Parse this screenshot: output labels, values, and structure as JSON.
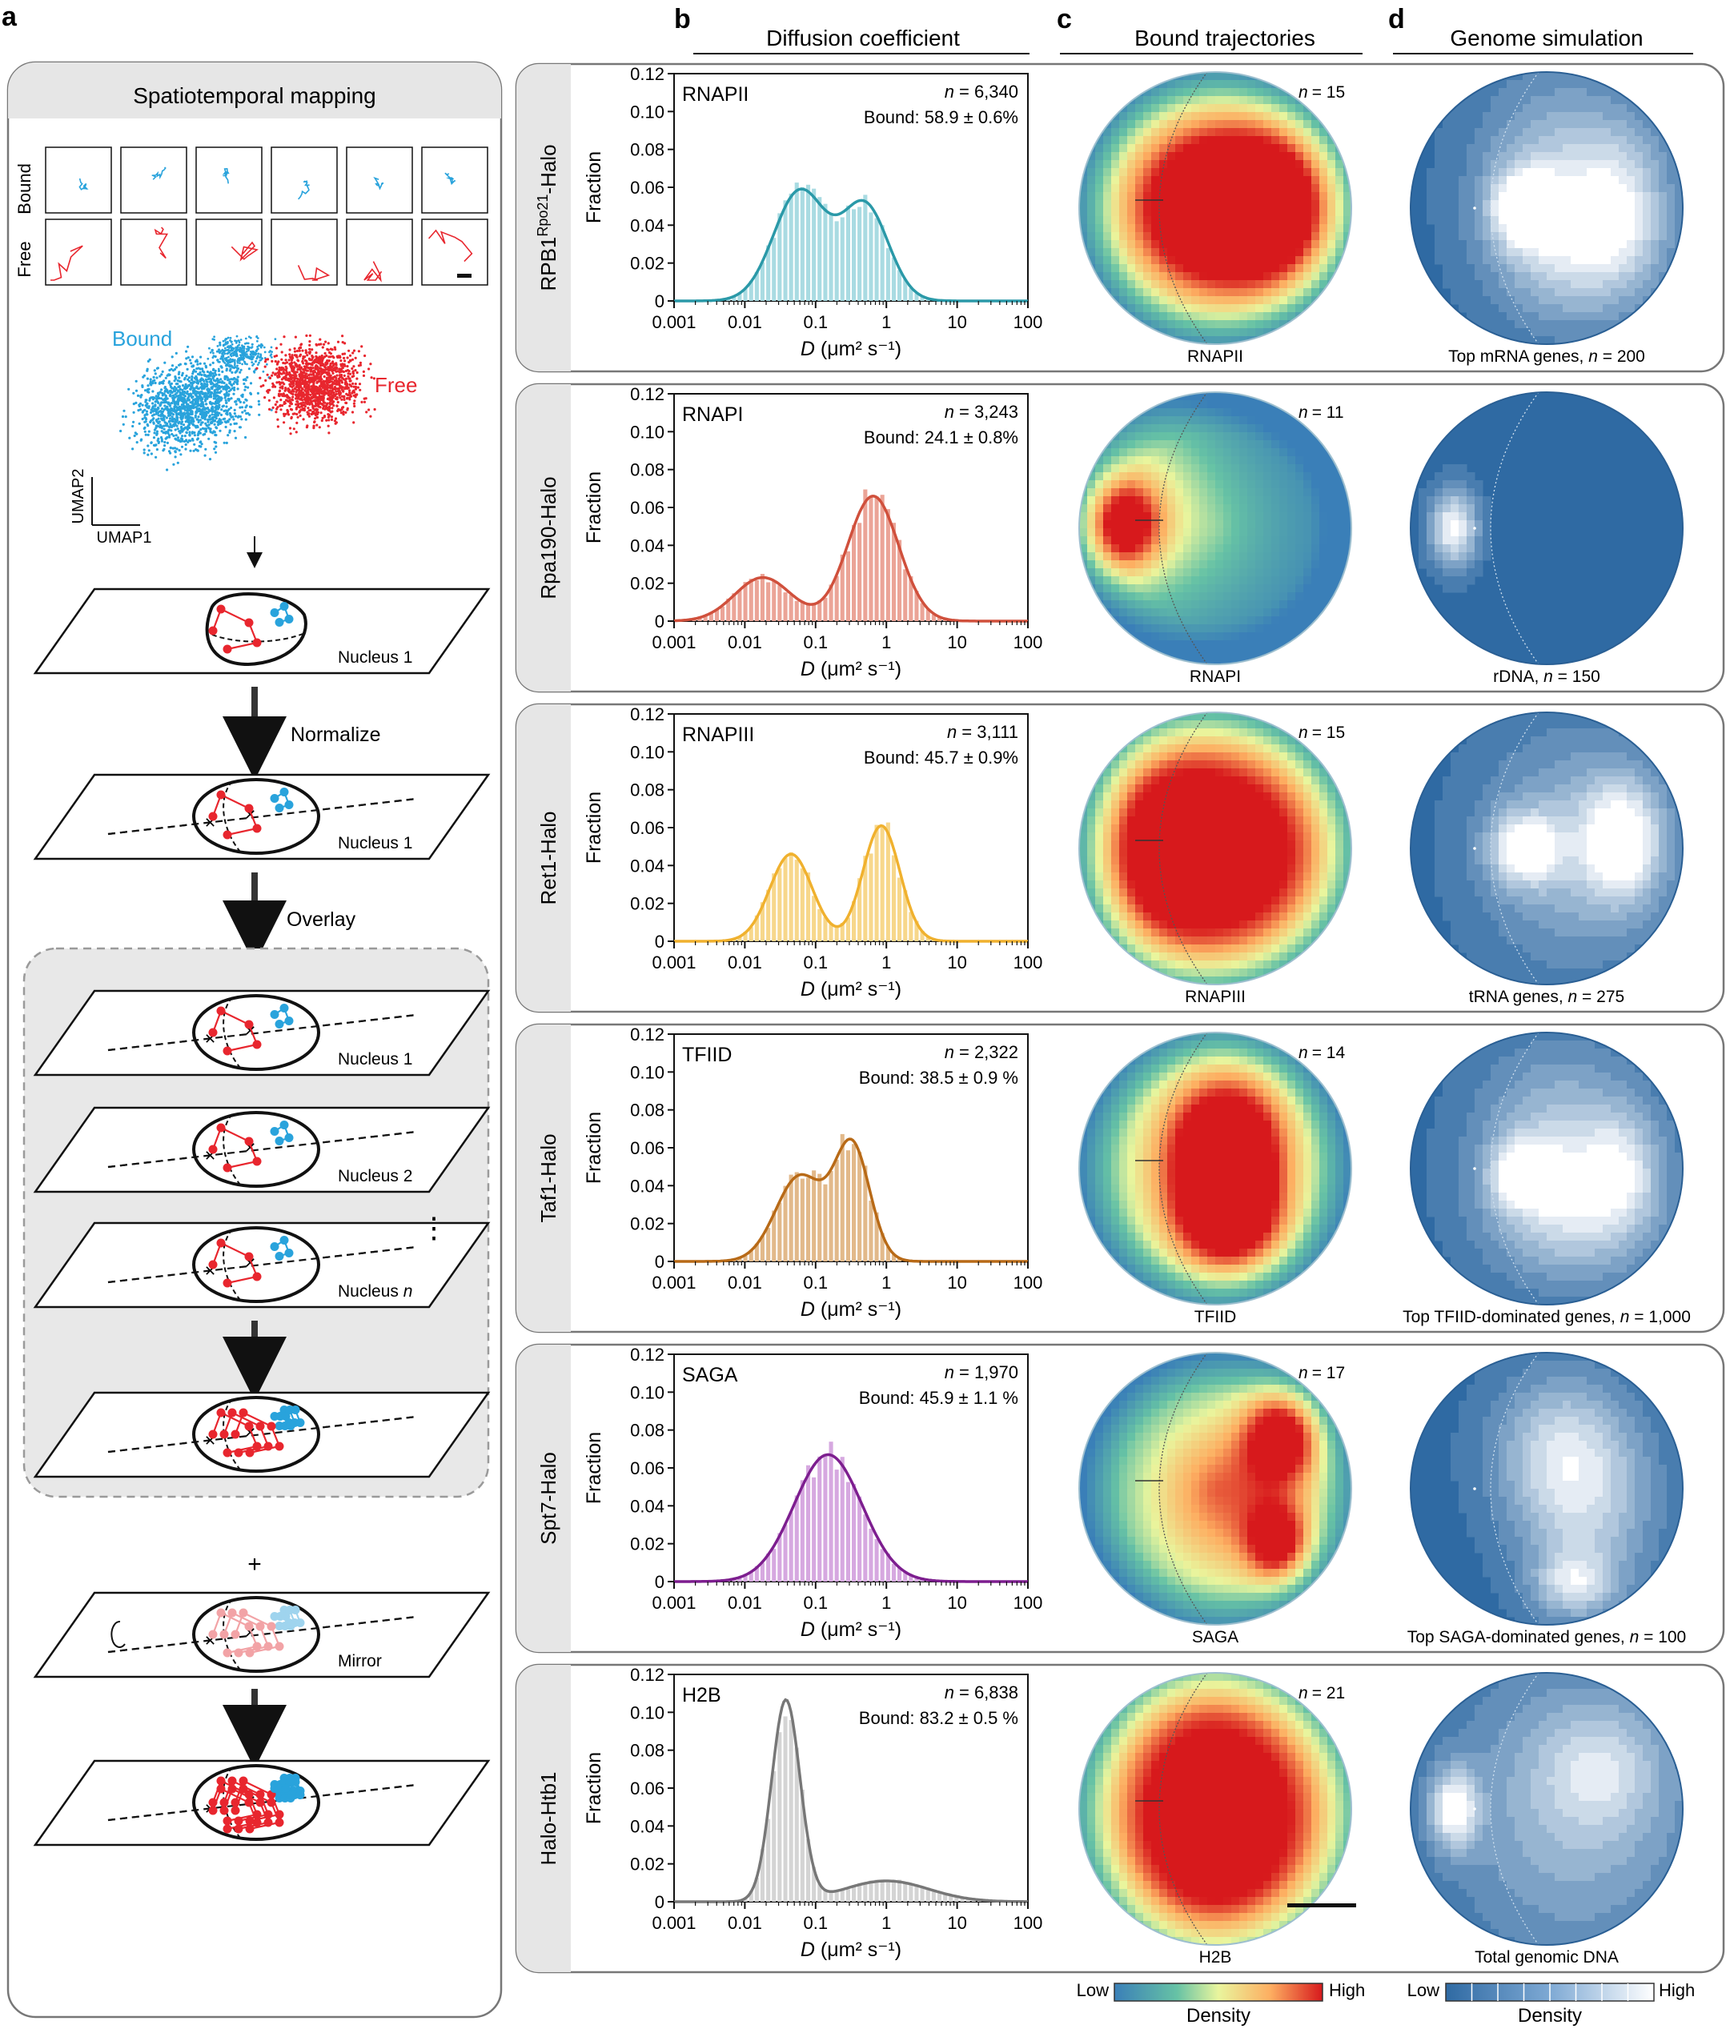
{
  "panel_letters": {
    "a": "a",
    "b": "b",
    "c": "c",
    "d": "d"
  },
  "column_titles": {
    "b": "Diffusion coefficient",
    "c": "Bound trajectories",
    "d": "Genome simulation"
  },
  "panel_a": {
    "title": "Spatiotemporal mapping",
    "bound_label": "Bound",
    "free_label": "Free",
    "umap_bound": "Bound",
    "umap_free": "Free",
    "umap_x": "UMAP1",
    "umap_y": "UMAP2",
    "normalize": "Normalize",
    "overlay": "Overlay",
    "plus": "+",
    "dots": "⋮",
    "nucleus1_a": "Nucleus 1",
    "nucleus1_b": "Nucleus 1",
    "stack1": "Nucleus 1",
    "stack2": "Nucleus 2",
    "stackn_prefix": "Nucleus ",
    "stackn_italic": "n",
    "mirror": "Mirror"
  },
  "density_legend_c": {
    "low": "Low",
    "high": "High",
    "label": "Density"
  },
  "density_legend_d": {
    "low": "Low",
    "high": "High",
    "label": "Density"
  },
  "rows": [
    {
      "strain_main": "RPB1",
      "strain_sup": "Rpo21",
      "strain_tail": "-Halo",
      "factor": "RNAPII",
      "n_text": "= 6,340",
      "bound_text": "Bound: 58.9 ± 0.6%",
      "color": "#2a99a8",
      "fill": "#a9dbe2",
      "c_label": "RNAPII",
      "c_n": "= 15",
      "d_label_pre": "Top mRNA genes, ",
      "d_label_n": "n",
      "d_label_post": " = 200"
    },
    {
      "strain_main": "Rpa190-Halo",
      "strain_sup": "",
      "strain_tail": "",
      "factor": "RNAPI",
      "n_text": "= 3,243",
      "bound_text": "Bound: 24.1 ± 0.8%",
      "color": "#d0503c",
      "fill": "#eba497",
      "c_label": "RNAPI",
      "c_n": "= 11",
      "d_label_pre": "rDNA, ",
      "d_label_n": "n",
      "d_label_post": " = 150"
    },
    {
      "strain_main": "Ret1-Halo",
      "strain_sup": "",
      "strain_tail": "",
      "factor": "RNAPIII",
      "n_text": "= 3,111",
      "bound_text": "Bound: 45.7 ± 0.9%",
      "color": "#f0b12e",
      "fill": "#f7d78b",
      "c_label": "RNAPIII",
      "c_n": "= 15",
      "d_label_pre": "tRNA genes, ",
      "d_label_n": "n",
      "d_label_post": " = 275"
    },
    {
      "strain_main": "Taf1-Halo",
      "strain_sup": "",
      "strain_tail": "",
      "factor": "TFIID",
      "n_text": "= 2,322",
      "bound_text": "Bound: 38.5 ± 0.9 %",
      "color": "#b86a17",
      "fill": "#e2b98a",
      "c_label": "TFIID",
      "c_n": "= 14",
      "d_label_pre": "Top TFIID-dominated genes, ",
      "d_label_n": "n",
      "d_label_post": " = 1,000"
    },
    {
      "strain_main": "Spt7-Halo",
      "strain_sup": "",
      "strain_tail": "",
      "factor": "SAGA",
      "n_text": "= 1,970",
      "bound_text": "Bound: 45.9 ± 1.1 %",
      "color": "#7d1e8f",
      "fill": "#d6a8e0",
      "c_label": "SAGA",
      "c_n": "= 17",
      "d_label_pre": "Top SAGA-dominated genes, ",
      "d_label_n": "n",
      "d_label_post": " = 100"
    },
    {
      "strain_main": "Halo-Htb1",
      "strain_sup": "",
      "strain_tail": "",
      "factor": "H2B",
      "n_text": "= 6,838",
      "bound_text": "Bound: 83.2 ± 0.5 %",
      "color": "#777777",
      "fill": "#d4d4d4",
      "c_label": "H2B",
      "c_n": "= 21",
      "d_label_pre": "Total genomic DNA",
      "d_label_n": "",
      "d_label_post": ""
    }
  ],
  "chart_data": [
    {
      "type": "bar",
      "series_name": "RNAPII",
      "ylabel": "Fraction",
      "xlabel_italic": "D",
      "xlabel_rest": " (μm² s⁻¹)",
      "x_scale": "log",
      "xlim": [
        0.001,
        100
      ],
      "ylim": [
        0,
        0.12
      ],
      "x_ticks": [
        "0.001",
        "0.01",
        "0.1",
        "1",
        "10",
        "100"
      ],
      "y_ticks": [
        "0",
        "0.02",
        "0.04",
        "0.06",
        "0.08",
        "0.10",
        "0.12"
      ],
      "curve_peaks": [
        {
          "x": 0.06,
          "y": 0.058,
          "w": 0.37
        },
        {
          "x": 0.5,
          "y": 0.05,
          "w": 0.33
        }
      ],
      "curve_base": 0.0
    },
    {
      "type": "bar",
      "series_name": "RNAPI",
      "ylabel": "Fraction",
      "xlabel_italic": "D",
      "xlabel_rest": " (μm² s⁻¹)",
      "x_scale": "log",
      "xlim": [
        0.001,
        100
      ],
      "ylim": [
        0,
        0.12
      ],
      "x_ticks": [
        "0.001",
        "0.01",
        "0.1",
        "1",
        "10",
        "100"
      ],
      "y_ticks": [
        "0",
        "0.02",
        "0.04",
        "0.06",
        "0.08",
        "0.10",
        "0.12"
      ],
      "curve_peaks": [
        {
          "x": 0.018,
          "y": 0.023,
          "w": 0.4
        },
        {
          "x": 0.65,
          "y": 0.066,
          "w": 0.36
        }
      ],
      "curve_base": 0.0
    },
    {
      "type": "bar",
      "series_name": "RNAPIII",
      "ylabel": "Fraction",
      "xlabel_italic": "D",
      "xlabel_rest": " (μm² s⁻¹)",
      "x_scale": "log",
      "xlim": [
        0.001,
        100
      ],
      "ylim": [
        0,
        0.12
      ],
      "x_ticks": [
        "0.001",
        "0.01",
        "0.1",
        "1",
        "10",
        "100"
      ],
      "y_ticks": [
        "0",
        "0.02",
        "0.04",
        "0.06",
        "0.08",
        "0.10",
        "0.12"
      ],
      "curve_peaks": [
        {
          "x": 0.045,
          "y": 0.046,
          "w": 0.3
        },
        {
          "x": 0.85,
          "y": 0.061,
          "w": 0.26
        }
      ],
      "curve_base": 0.0
    },
    {
      "type": "bar",
      "series_name": "TFIID",
      "ylabel": "Fraction",
      "xlabel_italic": "D",
      "xlabel_rest": " (μm² s⁻¹)",
      "x_scale": "log",
      "xlim": [
        0.001,
        100
      ],
      "ylim": [
        0,
        0.12
      ],
      "x_ticks": [
        "0.001",
        "0.01",
        "0.1",
        "1",
        "10",
        "100"
      ],
      "y_ticks": [
        "0",
        "0.02",
        "0.04",
        "0.06",
        "0.08",
        "0.10",
        "0.12"
      ],
      "curve_peaks": [
        {
          "x": 0.06,
          "y": 0.045,
          "w": 0.34
        },
        {
          "x": 0.33,
          "y": 0.06,
          "w": 0.25
        }
      ],
      "curve_base": 0.0
    },
    {
      "type": "bar",
      "series_name": "SAGA",
      "ylabel": "Fraction",
      "xlabel_italic": "D",
      "xlabel_rest": " (μm² s⁻¹)",
      "x_scale": "log",
      "xlim": [
        0.001,
        100
      ],
      "ylim": [
        0,
        0.12
      ],
      "x_ticks": [
        "0.001",
        "0.01",
        "0.1",
        "1",
        "10",
        "100"
      ],
      "y_ticks": [
        "0",
        "0.02",
        "0.04",
        "0.06",
        "0.08",
        "0.10",
        "0.12"
      ],
      "curve_peaks": [
        {
          "x": 0.15,
          "y": 0.067,
          "w": 0.48
        }
      ],
      "curve_base": 0.0
    },
    {
      "type": "bar",
      "series_name": "H2B",
      "ylabel": "Fraction",
      "xlabel_italic": "D",
      "xlabel_rest": " (μm² s⁻¹)",
      "x_scale": "log",
      "xlim": [
        0.001,
        100
      ],
      "ylim": [
        0,
        0.12
      ],
      "x_ticks": [
        "0.001",
        "0.01",
        "0.1",
        "1",
        "10",
        "100"
      ],
      "y_ticks": [
        "0",
        "0.02",
        "0.04",
        "0.06",
        "0.08",
        "0.10",
        "0.12"
      ],
      "curve_peaks": [
        {
          "x": 0.038,
          "y": 0.106,
          "w": 0.2
        },
        {
          "x": 1.0,
          "y": 0.011,
          "w": 0.6
        }
      ],
      "curve_base": 0.0
    }
  ],
  "heatmaps_c": [
    {
      "blobs": [
        [
          0.55,
          0.5,
          0.28,
          0.22,
          1.0
        ],
        [
          0.72,
          0.5,
          0.18,
          0.25,
          0.7
        ],
        [
          0.4,
          0.5,
          0.2,
          0.3,
          0.5
        ]
      ],
      "bg": 0.25
    },
    {
      "blobs": [
        [
          0.16,
          0.49,
          0.1,
          0.12,
          1.0
        ],
        [
          0.2,
          0.4,
          0.22,
          0.3,
          0.55
        ]
      ],
      "bg": 0.05
    },
    {
      "blobs": [
        [
          0.6,
          0.52,
          0.3,
          0.3,
          0.85
        ],
        [
          0.45,
          0.5,
          0.25,
          0.35,
          0.55
        ],
        [
          0.25,
          0.5,
          0.15,
          0.3,
          0.45
        ]
      ],
      "bg": 0.3
    },
    {
      "blobs": [
        [
          0.55,
          0.4,
          0.15,
          0.18,
          0.95
        ],
        [
          0.55,
          0.7,
          0.14,
          0.13,
          0.9
        ],
        [
          0.5,
          0.5,
          0.3,
          0.35,
          0.6
        ]
      ],
      "bg": 0.2
    },
    {
      "blobs": [
        [
          0.75,
          0.3,
          0.1,
          0.12,
          0.95
        ],
        [
          0.6,
          0.55,
          0.28,
          0.3,
          0.65
        ],
        [
          0.73,
          0.7,
          0.08,
          0.1,
          0.8
        ]
      ],
      "bg": 0.25
    },
    {
      "blobs": [
        [
          0.6,
          0.55,
          0.33,
          0.4,
          0.9
        ],
        [
          0.4,
          0.5,
          0.25,
          0.4,
          0.55
        ]
      ],
      "bg": 0.3
    }
  ],
  "heatmaps_d": [
    {
      "blobs": [
        [
          0.42,
          0.5,
          0.08,
          0.09,
          1.0
        ],
        [
          0.55,
          0.4,
          0.22,
          0.28,
          0.6
        ],
        [
          0.6,
          0.65,
          0.2,
          0.2,
          0.5
        ],
        [
          0.78,
          0.5,
          0.12,
          0.2,
          0.5
        ]
      ]
    },
    {
      "blobs": [
        [
          0.16,
          0.5,
          0.06,
          0.1,
          1.0
        ]
      ]
    },
    {
      "blobs": [
        [
          0.42,
          0.5,
          0.09,
          0.09,
          0.85
        ],
        [
          0.78,
          0.47,
          0.1,
          0.15,
          0.9
        ],
        [
          0.6,
          0.5,
          0.25,
          0.3,
          0.55
        ]
      ]
    },
    {
      "blobs": [
        [
          0.42,
          0.52,
          0.08,
          0.08,
          0.9
        ],
        [
          0.55,
          0.4,
          0.22,
          0.25,
          0.6
        ],
        [
          0.6,
          0.68,
          0.22,
          0.18,
          0.55
        ],
        [
          0.78,
          0.5,
          0.1,
          0.15,
          0.5
        ]
      ]
    },
    {
      "blobs": [
        [
          0.55,
          0.35,
          0.18,
          0.2,
          0.6
        ],
        [
          0.65,
          0.6,
          0.18,
          0.25,
          0.55
        ],
        [
          0.6,
          0.85,
          0.1,
          0.08,
          0.6
        ]
      ]
    },
    {
      "blobs": [
        [
          0.16,
          0.5,
          0.06,
          0.1,
          0.95
        ],
        [
          0.6,
          0.5,
          0.32,
          0.38,
          0.55
        ],
        [
          0.7,
          0.35,
          0.15,
          0.15,
          0.4
        ]
      ]
    }
  ]
}
